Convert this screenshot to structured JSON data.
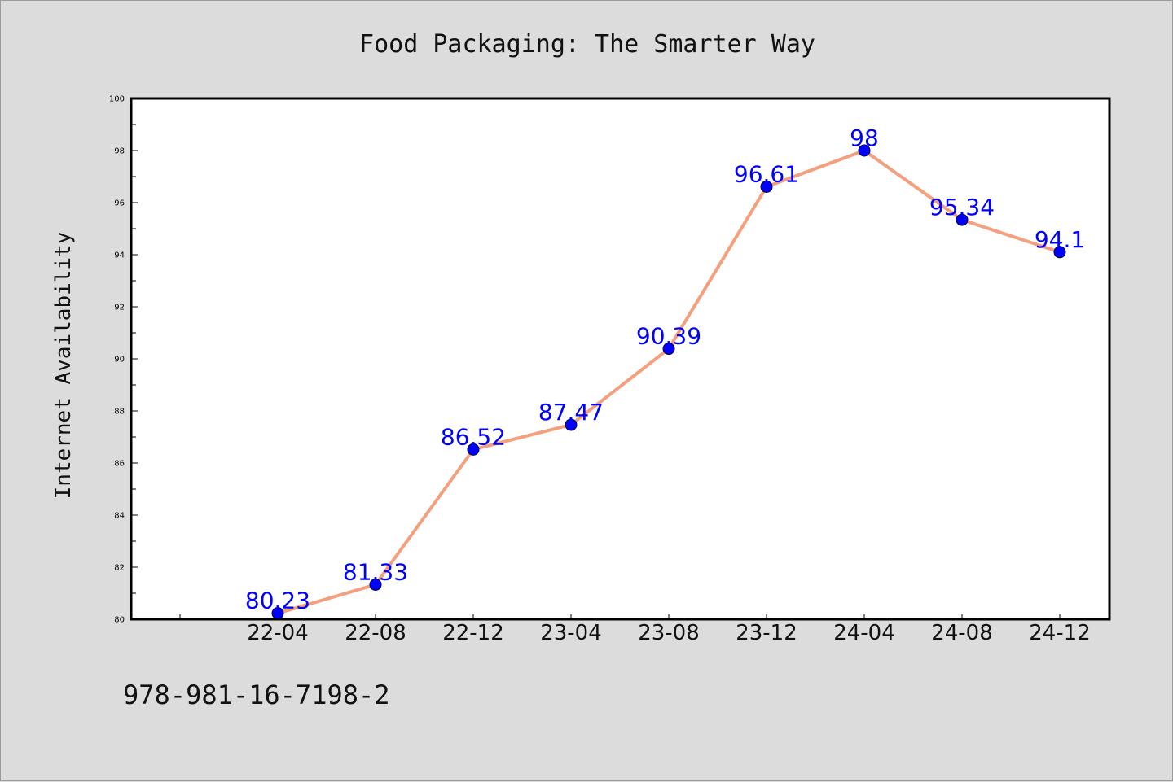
{
  "chart_data": {
    "type": "line",
    "title": "Food Packaging: The Smarter Way",
    "ylabel": "Internet Availability",
    "xlabel": "",
    "categories": [
      "22-04",
      "22-08",
      "22-12",
      "23-04",
      "23-08",
      "23-12",
      "24-04",
      "24-08",
      "24-12"
    ],
    "series": [
      {
        "values": [
          80.23,
          81.33,
          86.52,
          87.47,
          90.39,
          96.61,
          98,
          95.34,
          94.1
        ]
      }
    ],
    "data_labels": [
      "80.23",
      "81.33",
      "86.52",
      "87.47",
      "90.39",
      "96.61",
      "98",
      "95.34",
      "94.1"
    ],
    "ylim": [
      80,
      100
    ],
    "yticks": [
      "80",
      "82",
      "84",
      "86",
      "88",
      "90",
      "92",
      "94",
      "96",
      "98",
      "100"
    ],
    "grid": false,
    "colors": {
      "line": "#f4a07e",
      "marker": "#0000ff",
      "label": "#0000ff",
      "background": "#dcdcdc",
      "plot": "#ffffff"
    }
  },
  "footer": {
    "text": "978-981-16-7198-2"
  }
}
